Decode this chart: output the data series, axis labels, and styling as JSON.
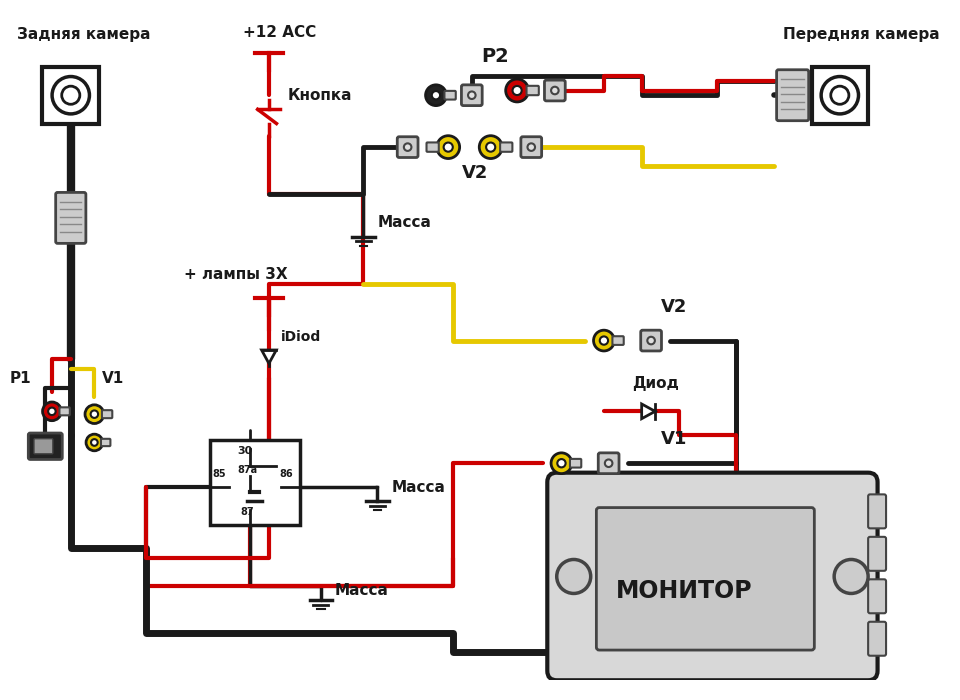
{
  "bg_color": "#ffffff",
  "figsize": [
    9.6,
    7.0
  ],
  "dpi": 100,
  "labels": {
    "rear_camera": "Задняя камера",
    "front_camera": "Передняя камера",
    "plus12acc": "+12 ACC",
    "knopka": "Кнопка",
    "lampy": "+ лампы 3X",
    "idiod": "iDiod",
    "massa": "Масса",
    "diod": "Диод",
    "monitor": "МОНИТОР",
    "P1": "P1",
    "P2": "P2",
    "V1": "V1",
    "V2": "V2"
  },
  "colors": {
    "red": "#cc0000",
    "black": "#1a1a1a",
    "yellow": "#e6c800",
    "gray": "#999999",
    "light_gray": "#cccccc",
    "white": "#ffffff",
    "dark_gray": "#444444",
    "wire_black": "#1a1a1a",
    "relay_fill": "#ffffff"
  }
}
